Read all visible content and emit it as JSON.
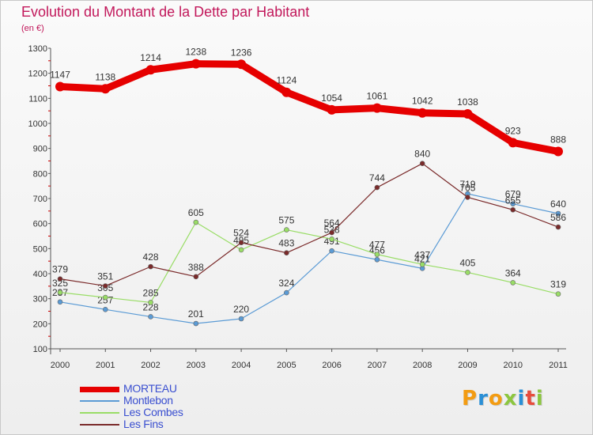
{
  "header": {
    "title": "Evolution du Montant de la Dette par Habitant",
    "unit": "(en €)"
  },
  "brand": {
    "logo_letters": [
      "P",
      "r",
      "o",
      "x",
      "i",
      "t",
      "i"
    ],
    "logo_colors": [
      "#f39c12",
      "#2a8fd6",
      "#f39c12",
      "#8cc63f",
      "#2a8fd6",
      "#e74c3c",
      "#8cc63f"
    ]
  },
  "chart_data": {
    "type": "line",
    "title": "Evolution du Montant de la Dette par Habitant",
    "subtitle": "(en €)",
    "xlabel": "",
    "ylabel": "",
    "x": [
      "2000",
      "2001",
      "2002",
      "2003",
      "2004",
      "2005",
      "2006",
      "2007",
      "2008",
      "2009",
      "2010",
      "2011"
    ],
    "ylim": [
      100,
      1300
    ],
    "y_ticks": [
      100,
      200,
      300,
      400,
      500,
      600,
      700,
      800,
      900,
      1000,
      1100,
      1200,
      1300
    ],
    "grid": false,
    "legend_position": "bottom-left",
    "series": [
      {
        "name": "MORTEAU",
        "color": "#e60000",
        "emphasis": true,
        "values": [
          1147,
          1138,
          1214,
          1238,
          1236,
          1124,
          1054,
          1061,
          1042,
          1038,
          923,
          888
        ]
      },
      {
        "name": "Montlebon",
        "color": "#5b9bd5",
        "values": [
          287,
          257,
          228,
          201,
          220,
          324,
          491,
          456,
          421,
          719,
          679,
          640
        ]
      },
      {
        "name": "Les Combes",
        "color": "#99dd66",
        "values": [
          325,
          305,
          285,
          605,
          495,
          575,
          538,
          477,
          437,
          405,
          364,
          319
        ]
      },
      {
        "name": "Les Fins",
        "color": "#7a2a2a",
        "values": [
          379,
          351,
          428,
          388,
          524,
          483,
          564,
          744,
          840,
          705,
          655,
          586
        ]
      }
    ]
  }
}
